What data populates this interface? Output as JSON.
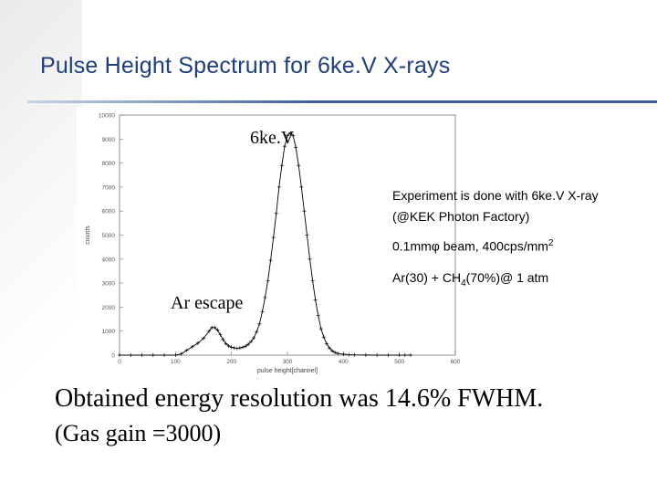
{
  "slide": {
    "title": "Pulse Height Spectrum for 6ke.V X-rays"
  },
  "annotations": {
    "peak_label": "6ke.V",
    "escape_label": "Ar escape",
    "note_line1": "Experiment is done with 6ke.V X-ray",
    "note_line2": "(@KEK Photon Factory)",
    "note_line3_main": "0.1mmφ beam, 400cps/mm",
    "note_line3_sup": "2",
    "note_line4_pre": "Ar(30) + CH",
    "note_line4_sub": "4",
    "note_line4_post": "(70%)@ 1 atm"
  },
  "conclusion": {
    "line1": "Obtained energy resolution was 14.6% FWHM.",
    "line2": "(Gas gain =3000)"
  },
  "chart_data": {
    "type": "scatter",
    "xlabel": "pulse height[channel]",
    "ylabel": "counts",
    "xlim": [
      0,
      600
    ],
    "ylim": [
      0,
      10000
    ],
    "xticks": [
      "0",
      "100",
      "200",
      "300",
      "400",
      "500",
      "600"
    ],
    "yticks": [
      "0",
      "1000",
      "2000",
      "3000",
      "4000",
      "5000",
      "6000",
      "7000",
      "8000",
      "9000",
      "10000"
    ],
    "grid": false,
    "marker": "+",
    "color": "#000000",
    "series": [
      {
        "values_x": [
          0,
          20,
          40,
          60,
          80,
          100,
          110,
          120,
          130,
          140,
          150,
          160,
          165,
          170,
          175,
          180,
          185,
          190,
          195,
          200,
          205,
          210,
          215,
          220,
          225,
          230,
          235,
          240,
          245,
          250,
          255,
          260,
          265,
          270,
          275,
          280,
          285,
          290,
          295,
          300,
          305,
          310,
          315,
          320,
          325,
          330,
          335,
          340,
          345,
          350,
          355,
          360,
          365,
          370,
          375,
          380,
          385,
          390,
          400,
          410,
          420,
          440,
          460,
          480,
          500,
          510,
          520
        ],
        "values_y": [
          0,
          0,
          0,
          0,
          0,
          0,
          50,
          200,
          350,
          500,
          700,
          1000,
          1150,
          1150,
          1050,
          850,
          650,
          480,
          380,
          330,
          300,
          280,
          300,
          330,
          370,
          450,
          570,
          720,
          980,
          1300,
          1800,
          2400,
          3100,
          3950,
          4900,
          5900,
          7000,
          7900,
          8700,
          9150,
          9250,
          9150,
          8650,
          7900,
          7000,
          6000,
          5000,
          4000,
          3100,
          2300,
          1650,
          1100,
          750,
          480,
          300,
          180,
          110,
          70,
          40,
          20,
          10,
          5,
          0,
          0,
          0,
          0,
          0
        ]
      }
    ]
  }
}
